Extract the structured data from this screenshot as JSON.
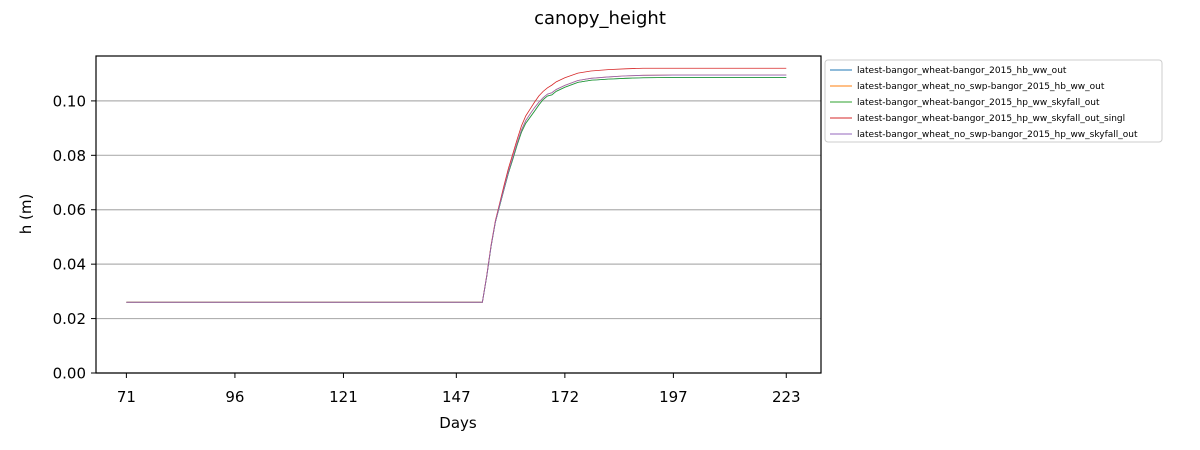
{
  "chart_data": {
    "type": "line",
    "title": "canopy_height",
    "xlabel": "Days",
    "ylabel": "h (m)",
    "xlim": [
      64,
      231
    ],
    "ylim": [
      0.0,
      0.1165
    ],
    "xticks": [
      71,
      96,
      121,
      147,
      172,
      197,
      223
    ],
    "xtick_labels": [
      "71",
      "96",
      "121",
      "147",
      "172",
      "197",
      "223"
    ],
    "yticks": [
      0.0,
      0.02,
      0.04,
      0.06,
      0.08,
      0.1
    ],
    "ytick_labels": [
      "0.00",
      "0.02",
      "0.04",
      "0.06",
      "0.08",
      "0.10"
    ],
    "grid": "y",
    "legend_position": "outside-right-top",
    "series": [
      {
        "name": "latest-bangor_wheat-bangor_2015_hb_ww_out",
        "color": "#1f77b4",
        "x": [
          71,
          100,
          130,
          150,
          152,
          153,
          154,
          155,
          156,
          157,
          158,
          159,
          160,
          161,
          162,
          163,
          164,
          165,
          166,
          167,
          168,
          169,
          170,
          172,
          175,
          178,
          182,
          186,
          190,
          197,
          210,
          223
        ],
        "y": [
          0.026,
          0.026,
          0.026,
          0.026,
          0.026,
          0.026,
          0.0355,
          0.0465,
          0.0555,
          0.0615,
          0.0675,
          0.0735,
          0.0785,
          0.0838,
          0.0885,
          0.0918,
          0.094,
          0.0962,
          0.0985,
          0.1005,
          0.1018,
          0.1022,
          0.1035,
          0.105,
          0.1068,
          0.1076,
          0.108,
          0.1083,
          0.1085,
          0.1086,
          0.1086,
          0.1086
        ]
      },
      {
        "name": "latest-bangor_wheat_no_swp-bangor_2015_hb_ww_out",
        "color": "#ff7f0e",
        "x": [
          71,
          100,
          130,
          150,
          152,
          153,
          154,
          155,
          156,
          157,
          158,
          159,
          160,
          161,
          162,
          163,
          164,
          165,
          166,
          167,
          168,
          169,
          170,
          172,
          175,
          178,
          182,
          186,
          190,
          197,
          210,
          223
        ],
        "y": [
          0.026,
          0.026,
          0.026,
          0.026,
          0.026,
          0.026,
          0.0355,
          0.0465,
          0.0555,
          0.0618,
          0.0678,
          0.074,
          0.0792,
          0.0845,
          0.0893,
          0.0928,
          0.0952,
          0.0975,
          0.0995,
          0.1012,
          0.1025,
          0.103,
          0.1042,
          0.1057,
          0.1075,
          0.1083,
          0.1088,
          0.1092,
          0.1094,
          0.1095,
          0.1095,
          0.1095
        ]
      },
      {
        "name": "latest-bangor_wheat-bangor_2015_hp_ww_skyfall_out",
        "color": "#2ca02c",
        "x": [
          71,
          100,
          130,
          150,
          152,
          153,
          154,
          155,
          156,
          157,
          158,
          159,
          160,
          161,
          162,
          163,
          164,
          165,
          166,
          167,
          168,
          169,
          170,
          172,
          175,
          178,
          182,
          186,
          190,
          197,
          210,
          223
        ],
        "y": [
          0.026,
          0.026,
          0.026,
          0.026,
          0.026,
          0.026,
          0.0355,
          0.0465,
          0.0555,
          0.0615,
          0.0675,
          0.0735,
          0.0785,
          0.0838,
          0.0885,
          0.0918,
          0.094,
          0.0962,
          0.0985,
          0.1005,
          0.1018,
          0.1022,
          0.1035,
          0.105,
          0.1068,
          0.1076,
          0.108,
          0.1083,
          0.1085,
          0.1086,
          0.1086,
          0.1086
        ]
      },
      {
        "name": "latest-bangor_wheat-bangor_2015_hp_ww_skyfall_out_singl",
        "color": "#d62728",
        "x": [
          71,
          100,
          130,
          150,
          152,
          153,
          154,
          155,
          156,
          157,
          158,
          159,
          160,
          161,
          162,
          163,
          164,
          165,
          166,
          167,
          168,
          169,
          170,
          172,
          175,
          178,
          182,
          186,
          190,
          197,
          210,
          223
        ],
        "y": [
          0.026,
          0.026,
          0.026,
          0.026,
          0.026,
          0.026,
          0.0358,
          0.047,
          0.056,
          0.0625,
          0.069,
          0.0752,
          0.0805,
          0.0858,
          0.0908,
          0.0945,
          0.097,
          0.0995,
          0.1018,
          0.1035,
          0.1048,
          0.1058,
          0.107,
          0.1085,
          0.1102,
          0.111,
          0.1115,
          0.1118,
          0.112,
          0.112,
          0.112,
          0.112
        ]
      },
      {
        "name": "latest-bangor_wheat_no_swp-bangor_2015_hp_ww_skyfall_out",
        "color": "#9467bd",
        "x": [
          71,
          100,
          130,
          150,
          152,
          153,
          154,
          155,
          156,
          157,
          158,
          159,
          160,
          161,
          162,
          163,
          164,
          165,
          166,
          167,
          168,
          169,
          170,
          172,
          175,
          178,
          182,
          186,
          190,
          197,
          210,
          223
        ],
        "y": [
          0.026,
          0.026,
          0.026,
          0.026,
          0.026,
          0.026,
          0.0355,
          0.0465,
          0.0555,
          0.0618,
          0.0678,
          0.074,
          0.0792,
          0.0845,
          0.0893,
          0.0928,
          0.0952,
          0.0975,
          0.0995,
          0.1012,
          0.1025,
          0.103,
          0.1042,
          0.1057,
          0.1075,
          0.1083,
          0.1088,
          0.1092,
          0.1094,
          0.1095,
          0.1095,
          0.1095
        ]
      }
    ]
  }
}
